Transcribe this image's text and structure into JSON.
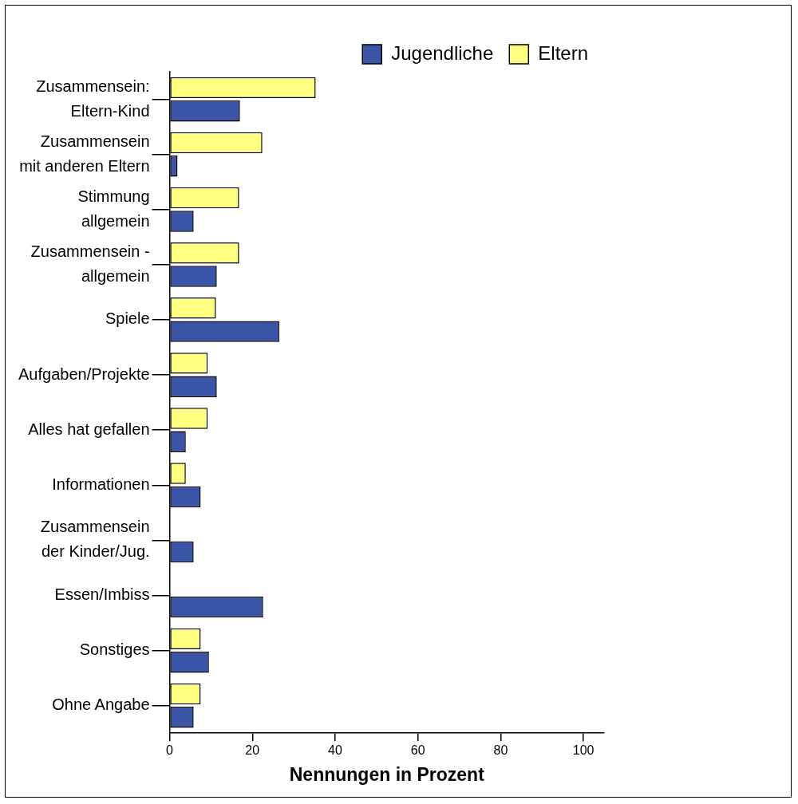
{
  "chart_data": {
    "type": "bar",
    "orientation": "horizontal",
    "xlabel": "Nennungen in Prozent",
    "categories": [
      "Zusammensein:\nEltern-Kind",
      "Zusammensein\nmit anderen Eltern",
      "Stimmung\nallgemein",
      "Zusammensein -\nallgemein",
      "Spiele",
      "Aufgaben/Projekte",
      "Alles hat gefallen",
      "Informationen",
      "Zusammensein\nder Kinder/Jug.",
      "Essen/Imbiss",
      "Sonstiges",
      "Ohne Angabe"
    ],
    "series": [
      {
        "name": "Eltern",
        "color": "#ffff80",
        "values": [
          35.3,
          22.4,
          16.8,
          16.8,
          11.2,
          9.2,
          9.2,
          3.9,
          0,
          0,
          7.5,
          7.5
        ]
      },
      {
        "name": "Jugendliche",
        "color": "#3a54a8",
        "values": [
          17,
          1.9,
          5.8,
          11.4,
          26.5,
          11.4,
          3.9,
          7.5,
          5.8,
          22.6,
          9.5,
          5.8
        ]
      }
    ],
    "xlim": [
      0,
      105
    ],
    "xticks": [
      0,
      20,
      40,
      60,
      80,
      100
    ],
    "grid": false,
    "legend": "top right"
  }
}
